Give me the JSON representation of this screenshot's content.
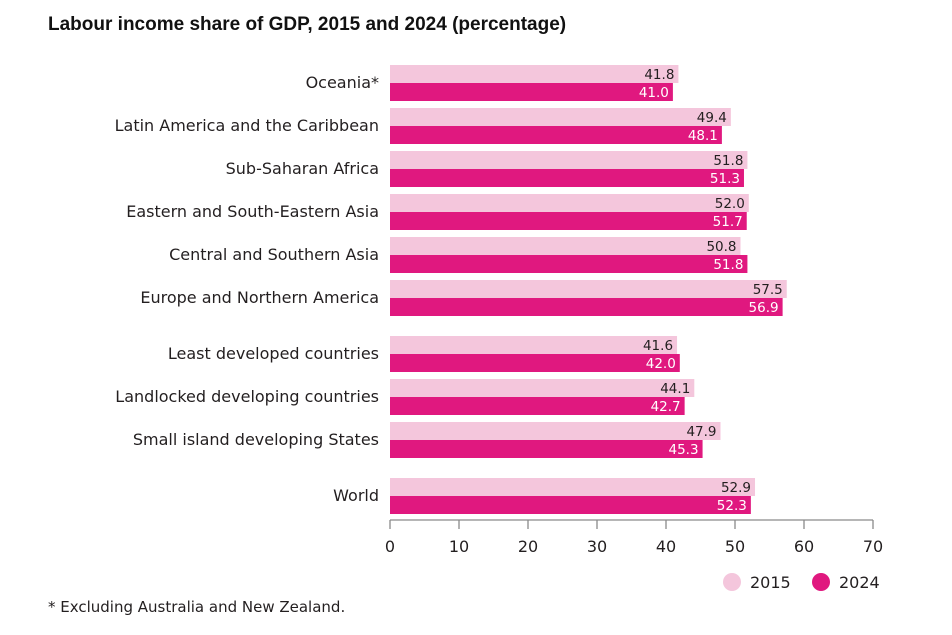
{
  "chart_data": {
    "type": "bar",
    "orientation": "horizontal",
    "title": "Labour income share of GDP, 2015 and 2024 (percentage)",
    "xlabel": "",
    "ylabel": "",
    "xlim": [
      0,
      70
    ],
    "xticks": [
      0,
      10,
      20,
      30,
      40,
      50,
      60,
      70
    ],
    "grid": false,
    "legend_position": "bottom-right",
    "categories": [
      "Oceania*",
      "Latin America and the Caribbean",
      "Sub-Saharan Africa",
      "Eastern and South-Eastern Asia",
      "Central and Southern Asia",
      "Europe and Northern America",
      "Least developed countries",
      "Landlocked developing countries",
      "Small island developing States",
      "World"
    ],
    "groups": [
      0,
      0,
      0,
      0,
      0,
      0,
      1,
      1,
      1,
      2
    ],
    "series": [
      {
        "name": "2015",
        "color": "#f4c6dc",
        "label_color": "#231f20",
        "values": [
          41.8,
          49.4,
          51.8,
          52.0,
          50.8,
          57.5,
          41.6,
          44.1,
          47.9,
          52.9
        ]
      },
      {
        "name": "2024",
        "color": "#e0187f",
        "label_color": "#ffffff",
        "values": [
          41.0,
          48.1,
          51.3,
          51.7,
          51.8,
          56.9,
          42.0,
          42.7,
          45.3,
          52.3
        ]
      }
    ],
    "footnote": "* Excluding Australia and New Zealand."
  }
}
